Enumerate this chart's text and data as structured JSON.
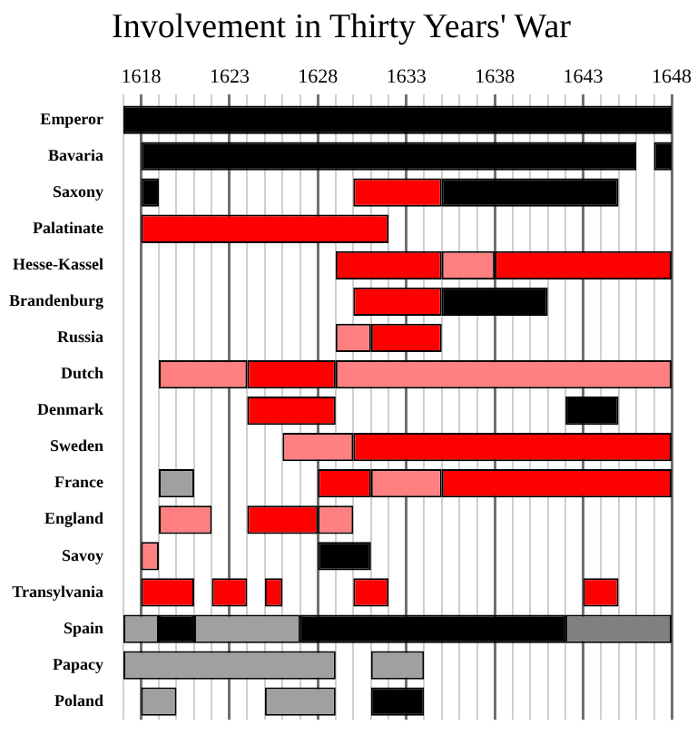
{
  "chart_data": {
    "type": "bar",
    "orientation": "horizontal",
    "title": "Involvement in Thirty Years' War",
    "categories": [
      "Emperor",
      "Bavaria",
      "Saxony",
      "Palatinate",
      "Hesse-Kassel",
      "Brandenburg",
      "Russia",
      "Dutch",
      "Denmark",
      "Sweden",
      "France",
      "England",
      "Savoy",
      "Transylvania",
      "Spain",
      "Papacy",
      "Poland"
    ],
    "series": [
      {
        "base": [
          1617,
          1618,
          1618,
          1618,
          1629,
          1630,
          1629,
          1619,
          1624,
          1626,
          1619,
          1619,
          1618,
          1618,
          1617,
          1617,
          1618
        ],
        "values": [
          31,
          28,
          1,
          14,
          6,
          5,
          2,
          5,
          5,
          4,
          2,
          3,
          1,
          3,
          2,
          12,
          2
        ],
        "colors": [
          "#000000",
          "#000000",
          "#000000",
          "#ff0000",
          "#ff0000",
          "#ff0000",
          "#ff8080",
          "#ff8080",
          "#ff0000",
          "#ff8080",
          "#a0a0a0",
          "#ff8080",
          "#ff8080",
          "#ff0000",
          "#a0a0a0",
          "#a0a0a0",
          "#a0a0a0"
        ]
      },
      {
        "base": [
          null,
          1647,
          1630,
          null,
          1635,
          1635,
          1631,
          1624,
          1642,
          1630,
          1628,
          1624,
          1628,
          1622,
          1619,
          1631,
          1625
        ],
        "values": [
          null,
          1,
          5,
          null,
          3,
          6,
          4,
          5,
          3,
          18,
          3,
          4,
          3,
          2,
          2,
          3,
          4
        ],
        "colors": [
          null,
          "#000000",
          "#ff0000",
          null,
          "#ff8080",
          "#000000",
          "#ff0000",
          "#ff0000",
          "#000000",
          "#ff0000",
          "#ff0000",
          "#ff0000",
          "#000000",
          "#ff0000",
          "#000000",
          "#a0a0a0",
          "#a0a0a0"
        ]
      },
      {
        "base": [
          null,
          null,
          1635,
          null,
          1638,
          null,
          null,
          1629,
          null,
          null,
          1631,
          1628,
          null,
          1625,
          1621,
          null,
          1631
        ],
        "values": [
          null,
          null,
          10,
          null,
          10,
          null,
          null,
          19,
          null,
          null,
          4,
          2,
          null,
          1,
          6,
          null,
          3
        ],
        "colors": [
          null,
          null,
          "#000000",
          null,
          "#ff0000",
          null,
          null,
          "#ff8080",
          null,
          null,
          "#ff8080",
          "#ff8080",
          null,
          "#ff0000",
          "#a0a0a0",
          null,
          "#000000"
        ]
      },
      {
        "base": [
          null,
          null,
          null,
          null,
          null,
          null,
          null,
          null,
          null,
          null,
          1635,
          null,
          null,
          1630,
          1627,
          null,
          null
        ],
        "values": [
          null,
          null,
          null,
          null,
          null,
          null,
          null,
          null,
          null,
          null,
          13,
          null,
          null,
          2,
          15,
          null,
          null
        ],
        "colors": [
          null,
          null,
          null,
          null,
          null,
          null,
          null,
          null,
          null,
          null,
          "#ff0000",
          null,
          null,
          "#ff0000",
          "#000000",
          null,
          null
        ]
      },
      {
        "base": [
          null,
          null,
          null,
          null,
          null,
          null,
          null,
          null,
          null,
          null,
          null,
          null,
          null,
          1643,
          1642,
          null,
          null
        ],
        "values": [
          null,
          null,
          null,
          null,
          null,
          null,
          null,
          null,
          null,
          null,
          null,
          null,
          null,
          2,
          6,
          null,
          null
        ],
        "colors": [
          null,
          null,
          null,
          null,
          null,
          null,
          null,
          null,
          null,
          null,
          null,
          null,
          null,
          "#ff0000",
          "#808080",
          null,
          null
        ]
      }
    ],
    "xlim": [
      1617,
      1648
    ],
    "xticks": [
      {
        "value": 1617,
        "label": null
      },
      1618,
      {
        "value": 1619,
        "label": null
      },
      {
        "value": 1620,
        "label": null
      },
      {
        "value": 1621,
        "label": null
      },
      {
        "value": 1622,
        "label": null
      },
      1623,
      {
        "value": 1624,
        "label": null
      },
      {
        "value": 1625,
        "label": null
      },
      {
        "value": 1626,
        "label": null
      },
      {
        "value": 1627,
        "label": null
      },
      1628,
      {
        "value": 1629,
        "label": null
      },
      {
        "value": 1630,
        "label": null
      },
      {
        "value": 1631,
        "label": null
      },
      {
        "value": 1632,
        "label": null
      },
      1633,
      {
        "value": 1634,
        "label": null
      },
      {
        "value": 1635,
        "label": null
      },
      {
        "value": 1636,
        "label": null
      },
      {
        "value": 1637,
        "label": null
      },
      1638,
      {
        "value": 1639,
        "label": null
      },
      {
        "value": 1640,
        "label": null
      },
      {
        "value": 1641,
        "label": null
      },
      {
        "value": 1642,
        "label": null
      },
      1643,
      {
        "value": 1644,
        "label": null
      },
      {
        "value": 1645,
        "label": null
      },
      {
        "value": 1646,
        "label": null
      },
      {
        "value": 1647,
        "label": null
      },
      1648
    ],
    "grid": "x"
  }
}
